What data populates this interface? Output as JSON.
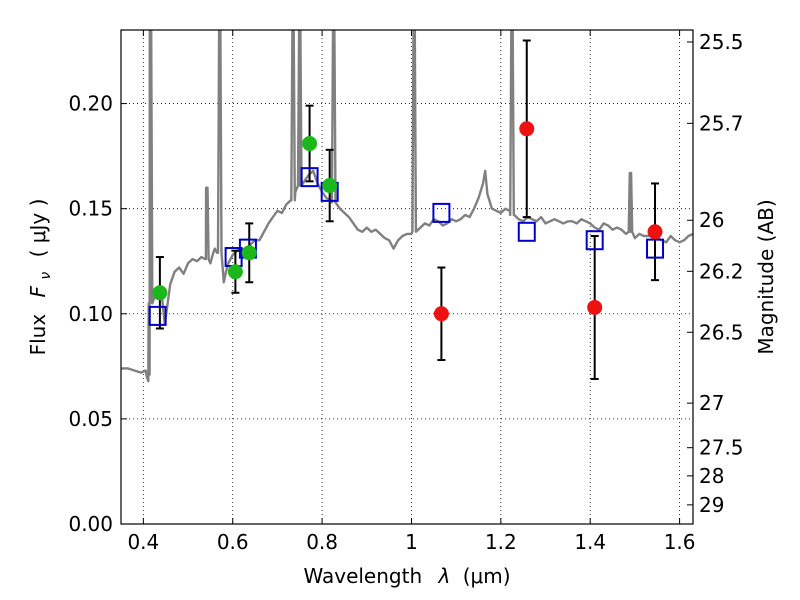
{
  "chart_data": {
    "type": "scatter",
    "xlabel_text": "Wavelength",
    "xlabel_symbol": "λ",
    "xlabel_unit": "(μm)",
    "ylabel_text": "Flux",
    "ylabel_symbol": "F",
    "ylabel_subscript": "ν",
    "ylabel_unit": "( μJy )",
    "y2label": "Magnitude (AB)",
    "xlim": [
      0.35,
      1.63
    ],
    "ylim": [
      0.0,
      0.235
    ],
    "xticks": [
      0.4,
      0.6,
      0.8,
      1.0,
      1.2,
      1.4,
      1.6
    ],
    "xtick_labels": [
      "0.4",
      "0.6",
      "0.8",
      "1",
      "1.2",
      "1.4",
      "1.6"
    ],
    "yticks": [
      0.0,
      0.05,
      0.1,
      0.15,
      0.2
    ],
    "ytick_labels": [
      "0.00",
      "0.05",
      "0.10",
      "0.15",
      "0.20"
    ],
    "y2ticks": [
      {
        "flux": 0.2293,
        "label": "25.5"
      },
      {
        "flux": 0.1906,
        "label": "25.7"
      },
      {
        "flux": 0.1445,
        "label": "26"
      },
      {
        "flux": 0.1202,
        "label": "26.2"
      },
      {
        "flux": 0.0912,
        "label": "26.5"
      },
      {
        "flux": 0.0575,
        "label": "27"
      },
      {
        "flux": 0.0363,
        "label": "27.5"
      },
      {
        "flux": 0.0229,
        "label": "28"
      },
      {
        "flux": 0.0091,
        "label": "29"
      }
    ],
    "grid": true,
    "grid_style": "dotted",
    "colors": {
      "spectrum": "#808080",
      "model_marker": "#0000cc",
      "green_points": "#1ab81a",
      "red_points": "#ee1111",
      "errorbar": "#000000"
    },
    "spectrum": [
      [
        0.35,
        0.074
      ],
      [
        0.365,
        0.074
      ],
      [
        0.38,
        0.073
      ],
      [
        0.395,
        0.072
      ],
      [
        0.405,
        0.073
      ],
      [
        0.408,
        0.07
      ],
      [
        0.411,
        0.068
      ],
      [
        0.414,
        0.071
      ],
      [
        0.415,
        0.105
      ],
      [
        0.42,
        0.108
      ],
      [
        0.43,
        0.111
      ],
      [
        0.44,
        0.112
      ],
      [
        0.448,
        0.095
      ],
      [
        0.46,
        0.114
      ],
      [
        0.47,
        0.12
      ],
      [
        0.48,
        0.122
      ],
      [
        0.49,
        0.119
      ],
      [
        0.5,
        0.124
      ],
      [
        0.51,
        0.126
      ],
      [
        0.52,
        0.125
      ],
      [
        0.53,
        0.127
      ],
      [
        0.54,
        0.126
      ],
      [
        0.55,
        0.124
      ],
      [
        0.555,
        0.128
      ],
      [
        0.56,
        0.131
      ],
      [
        0.565,
        0.129
      ],
      [
        0.58,
        0.115
      ],
      [
        0.585,
        0.12
      ],
      [
        0.59,
        0.124
      ],
      [
        0.6,
        0.128
      ],
      [
        0.61,
        0.13
      ],
      [
        0.62,
        0.131
      ],
      [
        0.63,
        0.13
      ],
      [
        0.64,
        0.133
      ],
      [
        0.65,
        0.135
      ],
      [
        0.66,
        0.135
      ],
      [
        0.67,
        0.139
      ],
      [
        0.68,
        0.143
      ],
      [
        0.69,
        0.146
      ],
      [
        0.7,
        0.149
      ],
      [
        0.71,
        0.148
      ],
      [
        0.72,
        0.152
      ],
      [
        0.73,
        0.154
      ],
      [
        0.74,
        0.158
      ],
      [
        0.75,
        0.161
      ],
      [
        0.76,
        0.163
      ],
      [
        0.77,
        0.166
      ],
      [
        0.78,
        0.168
      ],
      [
        0.79,
        0.162
      ],
      [
        0.8,
        0.158
      ],
      [
        0.81,
        0.155
      ],
      [
        0.82,
        0.154
      ],
      [
        0.83,
        0.153
      ],
      [
        0.84,
        0.15
      ],
      [
        0.85,
        0.148
      ],
      [
        0.86,
        0.146
      ],
      [
        0.87,
        0.143
      ],
      [
        0.88,
        0.14
      ],
      [
        0.89,
        0.139
      ],
      [
        0.9,
        0.141
      ],
      [
        0.91,
        0.139
      ],
      [
        0.92,
        0.14
      ],
      [
        0.93,
        0.138
      ],
      [
        0.94,
        0.136
      ],
      [
        0.95,
        0.135
      ],
      [
        0.96,
        0.131
      ],
      [
        0.97,
        0.135
      ],
      [
        0.98,
        0.137
      ],
      [
        0.99,
        0.138
      ],
      [
        1.0,
        0.138
      ],
      [
        1.01,
        0.139
      ],
      [
        1.02,
        0.141
      ],
      [
        1.03,
        0.143
      ],
      [
        1.04,
        0.142
      ],
      [
        1.05,
        0.145
      ],
      [
        1.06,
        0.144
      ],
      [
        1.07,
        0.142
      ],
      [
        1.08,
        0.143
      ],
      [
        1.09,
        0.145
      ],
      [
        1.1,
        0.144
      ],
      [
        1.11,
        0.145
      ],
      [
        1.12,
        0.147
      ],
      [
        1.13,
        0.146
      ],
      [
        1.14,
        0.15
      ],
      [
        1.15,
        0.155
      ],
      [
        1.16,
        0.162
      ],
      [
        1.165,
        0.168
      ],
      [
        1.17,
        0.157
      ],
      [
        1.18,
        0.15
      ],
      [
        1.19,
        0.149
      ],
      [
        1.2,
        0.148
      ],
      [
        1.21,
        0.15
      ],
      [
        1.22,
        0.149
      ],
      [
        1.23,
        0.147
      ],
      [
        1.24,
        0.145
      ],
      [
        1.25,
        0.144
      ],
      [
        1.26,
        0.146
      ],
      [
        1.27,
        0.145
      ],
      [
        1.28,
        0.144
      ],
      [
        1.29,
        0.146
      ],
      [
        1.3,
        0.143
      ],
      [
        1.31,
        0.144
      ],
      [
        1.32,
        0.145
      ],
      [
        1.33,
        0.144
      ],
      [
        1.34,
        0.143
      ],
      [
        1.35,
        0.144
      ],
      [
        1.36,
        0.144
      ],
      [
        1.37,
        0.143
      ],
      [
        1.38,
        0.145
      ],
      [
        1.39,
        0.144
      ],
      [
        1.4,
        0.143
      ],
      [
        1.41,
        0.141
      ],
      [
        1.42,
        0.14
      ],
      [
        1.43,
        0.143
      ],
      [
        1.44,
        0.142
      ],
      [
        1.45,
        0.14
      ],
      [
        1.46,
        0.141
      ],
      [
        1.47,
        0.14
      ],
      [
        1.48,
        0.138
      ],
      [
        1.49,
        0.139
      ],
      [
        1.5,
        0.136
      ],
      [
        1.51,
        0.138
      ],
      [
        1.52,
        0.137
      ],
      [
        1.53,
        0.137
      ],
      [
        1.54,
        0.138
      ],
      [
        1.55,
        0.136
      ],
      [
        1.56,
        0.135
      ],
      [
        1.57,
        0.134
      ],
      [
        1.58,
        0.137
      ],
      [
        1.59,
        0.135
      ],
      [
        1.6,
        0.134
      ],
      [
        1.61,
        0.135
      ],
      [
        1.62,
        0.137
      ],
      [
        1.63,
        0.138
      ]
    ],
    "emission_lines": [
      {
        "x": 0.416,
        "peak": 0.235
      },
      {
        "x": 0.542,
        "peak": 0.16
      },
      {
        "x": 0.571,
        "peak": 0.235
      },
      {
        "x": 0.735,
        "peak": 0.235
      },
      {
        "x": 0.75,
        "peak": 0.235
      },
      {
        "x": 0.826,
        "peak": 0.235
      },
      {
        "x": 1.006,
        "peak": 0.235
      },
      {
        "x": 1.225,
        "peak": 0.235
      },
      {
        "x": 1.49,
        "peak": 0.167
      }
    ],
    "model_points": [
      {
        "x": 0.432,
        "y": 0.099
      },
      {
        "x": 0.602,
        "y": 0.127
      },
      {
        "x": 0.634,
        "y": 0.131
      },
      {
        "x": 0.772,
        "y": 0.165
      },
      {
        "x": 0.817,
        "y": 0.158
      },
      {
        "x": 1.067,
        "y": 0.148
      },
      {
        "x": 1.258,
        "y": 0.139
      },
      {
        "x": 1.41,
        "y": 0.135
      },
      {
        "x": 1.545,
        "y": 0.131
      }
    ],
    "observed_points": [
      {
        "x": 0.437,
        "y": 0.11,
        "yerr": [
          0.017,
          0.017
        ],
        "color": "green"
      },
      {
        "x": 0.606,
        "y": 0.12,
        "yerr": [
          0.01,
          0.01
        ],
        "color": "green"
      },
      {
        "x": 0.637,
        "y": 0.129,
        "yerr": [
          0.014,
          0.014
        ],
        "color": "green"
      },
      {
        "x": 0.772,
        "y": 0.181,
        "yerr": [
          0.018,
          0.018
        ],
        "color": "green"
      },
      {
        "x": 0.817,
        "y": 0.161,
        "yerr": [
          0.017,
          0.017
        ],
        "color": "green"
      },
      {
        "x": 1.067,
        "y": 0.1,
        "yerr": [
          0.022,
          0.022
        ],
        "color": "red"
      },
      {
        "x": 1.258,
        "y": 0.188,
        "yerr": [
          0.042,
          0.042
        ],
        "color": "red"
      },
      {
        "x": 1.41,
        "y": 0.103,
        "yerr": [
          0.034,
          0.034
        ],
        "color": "red"
      },
      {
        "x": 1.545,
        "y": 0.139,
        "yerr": [
          0.023,
          0.023
        ],
        "color": "red"
      }
    ]
  }
}
